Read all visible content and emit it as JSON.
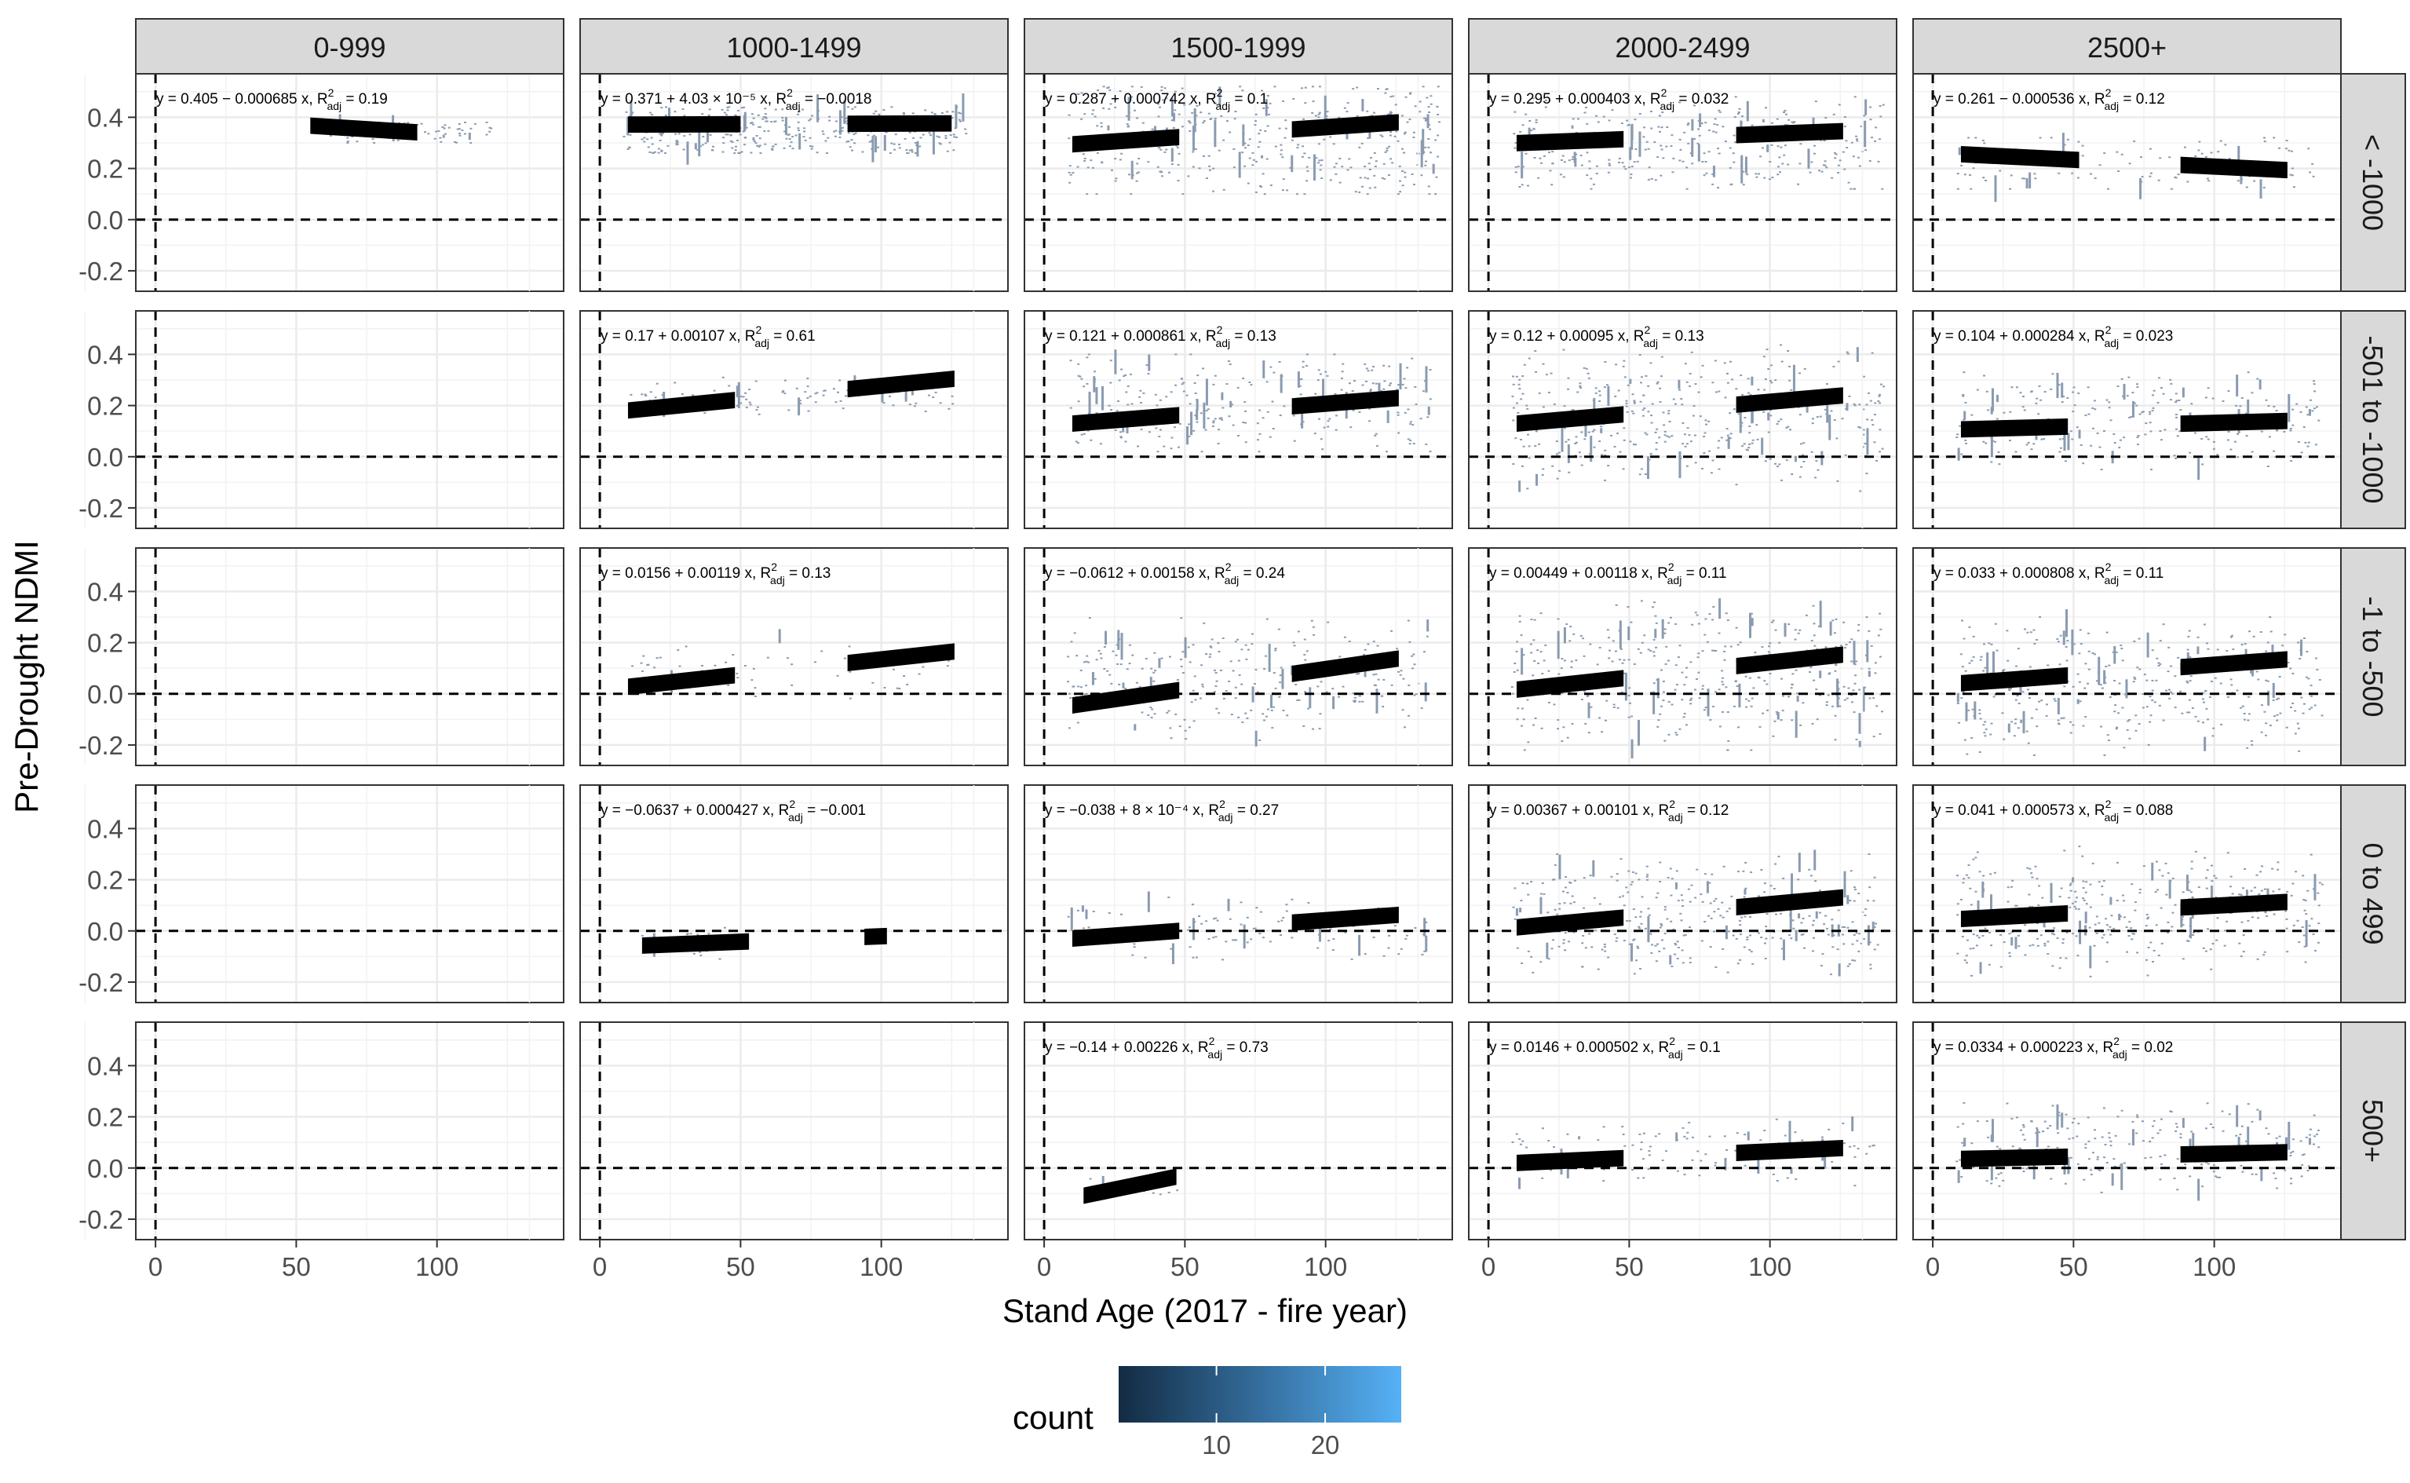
{
  "chart_data": {
    "type": "scatter",
    "facet_columns_label": "",
    "facet_rows_label": "",
    "x_axis": {
      "label": "Stand Age (2017 - fire year)",
      "lim": [
        -7,
        145
      ],
      "ticks": [
        0,
        50,
        100
      ],
      "tick_labels": [
        "0",
        "50",
        "100"
      ]
    },
    "y_axis": {
      "label": "Pre-Drought NDMI",
      "lim": [
        -0.28,
        0.57
      ],
      "ticks": [
        -0.2,
        0.0,
        0.2,
        0.4
      ],
      "tick_labels": [
        "-0.2",
        "0.0",
        "0.2",
        "0.4"
      ]
    },
    "reference_lines": {
      "x": 0,
      "y": 0,
      "style": "dashed"
    },
    "columns": [
      "0-999",
      "1000-1499",
      "1500-1999",
      "2000-2499",
      "2500+"
    ],
    "rows": [
      "< -1000",
      "-501 to -1000",
      "-1 to -500",
      "0 to 499",
      "500+"
    ],
    "legend": {
      "title": "count",
      "position": "bottom",
      "tick_values": [
        10,
        20
      ],
      "tick_labels": [
        "10",
        "20"
      ],
      "range": [
        1,
        27
      ],
      "color_low": "#132b43",
      "color_high": "#56b1f7"
    },
    "panels": [
      {
        "row": 0,
        "col": 0,
        "has_data": true,
        "equation": "y = 0.405 − 0.000685 x,  R²adj = 0.19",
        "eq_parts": {
          "pre": "y = 0.405 − 0.000685 x,  R",
          "sup": "2",
          "sub": "adj",
          "post": " = 0.19"
        },
        "segments": [
          [
            55,
            93,
            0.405,
            -0.000685
          ]
        ],
        "scatter": {
          "x": [
            60,
            120
          ],
          "y": [
            0.3,
            0.38
          ],
          "density": 0.2,
          "spread": 0.02
        }
      },
      {
        "row": 0,
        "col": 1,
        "has_data": true,
        "equation": "y = 0.371 + 4.03 × 10⁻⁵ x,  R²adj = −0.0018",
        "eq_parts": {
          "pre": "y = 0.371 + 4.03 × 10⁻⁵ x,  R",
          "sup": "2",
          "sub": "adj",
          "post": " = −0.0018"
        },
        "segments": [
          [
            10,
            50,
            0.371,
            4.03e-05
          ],
          [
            88,
            125,
            0.371,
            4.03e-05
          ]
        ],
        "scatter": {
          "x": [
            8,
            130
          ],
          "y": [
            0.26,
            0.44
          ],
          "density": 0.9,
          "spread": 0.04
        }
      },
      {
        "row": 0,
        "col": 2,
        "has_data": true,
        "equation": "y = 0.287 + 0.000742 x,  R²adj = 0.1",
        "eq_parts": {
          "pre": "y = 0.287 + 0.000742 x,  R",
          "sup": "2",
          "sub": "adj",
          "post": " = 0.1"
        },
        "segments": [
          [
            10,
            48,
            0.287,
            0.000742
          ],
          [
            88,
            126,
            0.287,
            0.000742
          ]
        ],
        "scatter": {
          "x": [
            8,
            140
          ],
          "y": [
            0.1,
            0.52
          ],
          "density": 1.0,
          "spread": 0.09
        }
      },
      {
        "row": 0,
        "col": 3,
        "has_data": true,
        "equation": "y = 0.295 + 0.000403 x,  R²adj = 0.032",
        "eq_parts": {
          "pre": "y = 0.295 + 0.000403 x,  R",
          "sup": "2",
          "sub": "adj",
          "post": " = 0.032"
        },
        "segments": [
          [
            10,
            48,
            0.295,
            0.000403
          ],
          [
            88,
            126,
            0.295,
            0.000403
          ]
        ],
        "scatter": {
          "x": [
            8,
            140
          ],
          "y": [
            0.12,
            0.48
          ],
          "density": 0.8,
          "spread": 0.07
        }
      },
      {
        "row": 0,
        "col": 4,
        "has_data": true,
        "equation": "y = 0.261 − 0.000536 x,  R²adj = 0.12",
        "eq_parts": {
          "pre": "y = 0.261 − 0.000536 x,  R",
          "sup": "2",
          "sub": "adj",
          "post": " = 0.12"
        },
        "segments": [
          [
            10,
            52,
            0.261,
            -0.000536
          ],
          [
            88,
            126,
            0.261,
            -0.000536
          ]
        ],
        "scatter": {
          "x": [
            8,
            135
          ],
          "y": [
            0.12,
            0.32
          ],
          "density": 0.3,
          "spread": 0.05
        }
      },
      {
        "row": 1,
        "col": 0,
        "has_data": false
      },
      {
        "row": 1,
        "col": 1,
        "has_data": true,
        "equation": "y = 0.17 + 0.00107 x,  R²adj = 0.61",
        "eq_parts": {
          "pre": "y = 0.17 + 0.00107 x,  R",
          "sup": "2",
          "sub": "adj",
          "post": " = 0.61"
        },
        "segments": [
          [
            10,
            48,
            0.17,
            0.00107
          ],
          [
            88,
            126,
            0.17,
            0.00107
          ]
        ],
        "scatter": {
          "x": [
            10,
            126
          ],
          "y": [
            0.14,
            0.33
          ],
          "density": 0.25,
          "spread": 0.02
        }
      },
      {
        "row": 1,
        "col": 2,
        "has_data": true,
        "equation": "y = 0.121 + 0.000861 x,  R²adj = 0.13",
        "eq_parts": {
          "pre": "y = 0.121 + 0.000861 x,  R",
          "sup": "2",
          "sub": "adj",
          "post": " = 0.13"
        },
        "segments": [
          [
            10,
            48,
            0.121,
            0.000861
          ],
          [
            88,
            126,
            0.121,
            0.000861
          ]
        ],
        "scatter": {
          "x": [
            8,
            138
          ],
          "y": [
            0.02,
            0.4
          ],
          "density": 0.7,
          "spread": 0.07
        }
      },
      {
        "row": 1,
        "col": 3,
        "has_data": true,
        "equation": "y = 0.12 + 0.00095 x,  R²adj = 0.13",
        "eq_parts": {
          "pre": "y = 0.12 + 0.00095 x,  R",
          "sup": "2",
          "sub": "adj",
          "post": " = 0.13"
        },
        "segments": [
          [
            10,
            48,
            0.12,
            0.00095
          ],
          [
            88,
            126,
            0.12,
            0.00095
          ]
        ],
        "scatter": {
          "x": [
            8,
            140
          ],
          "y": [
            -0.15,
            0.45
          ],
          "density": 1.0,
          "spread": 0.09
        }
      },
      {
        "row": 1,
        "col": 4,
        "has_data": true,
        "equation": "y = 0.104 + 0.000284 x,  R²adj = 0.023",
        "eq_parts": {
          "pre": "y = 0.104 + 0.000284 x,  R",
          "sup": "2",
          "sub": "adj",
          "post": " = 0.023"
        },
        "segments": [
          [
            10,
            48,
            0.104,
            0.000284
          ],
          [
            88,
            126,
            0.104,
            0.000284
          ]
        ],
        "scatter": {
          "x": [
            8,
            138
          ],
          "y": [
            -0.05,
            0.33
          ],
          "density": 0.6,
          "spread": 0.07
        }
      },
      {
        "row": 2,
        "col": 0,
        "has_data": false
      },
      {
        "row": 2,
        "col": 1,
        "has_data": true,
        "equation": "y = 0.0156 + 0.00119 x,  R²adj = 0.13",
        "eq_parts": {
          "pre": "y = 0.0156 + 0.00119 x,  R",
          "sup": "2",
          "sub": "adj",
          "post": " = 0.13"
        },
        "segments": [
          [
            10,
            48,
            0.0156,
            0.00119
          ],
          [
            88,
            126,
            0.0156,
            0.00119
          ]
        ],
        "scatter": {
          "x": [
            10,
            126
          ],
          "y": [
            -0.12,
            0.32
          ],
          "density": 0.15,
          "spread": 0.03
        }
      },
      {
        "row": 2,
        "col": 2,
        "has_data": true,
        "equation": "y = −0.0612 + 0.00158 x,  R²adj = 0.24",
        "eq_parts": {
          "pre": "y = −0.0612 + 0.00158 x,  R",
          "sup": "2",
          "sub": "adj",
          "post": " = 0.24"
        },
        "segments": [
          [
            10,
            48,
            -0.0612,
            0.00158
          ],
          [
            88,
            126,
            -0.0612,
            0.00158
          ]
        ],
        "scatter": {
          "x": [
            8,
            136
          ],
          "y": [
            -0.2,
            0.32
          ],
          "density": 0.7,
          "spread": 0.08
        }
      },
      {
        "row": 2,
        "col": 3,
        "has_data": true,
        "equation": "y = 0.00449 + 0.00118 x,  R²adj = 0.11",
        "eq_parts": {
          "pre": "y = 0.00449 + 0.00118 x,  R",
          "sup": "2",
          "sub": "adj",
          "post": " = 0.11"
        },
        "segments": [
          [
            10,
            48,
            0.00449,
            0.00118
          ],
          [
            88,
            126,
            0.00449,
            0.00118
          ]
        ],
        "scatter": {
          "x": [
            8,
            140
          ],
          "y": [
            -0.22,
            0.38
          ],
          "density": 1.0,
          "spread": 0.1
        }
      },
      {
        "row": 2,
        "col": 4,
        "has_data": true,
        "equation": "y = 0.033 + 0.000808 x,  R²adj = 0.11",
        "eq_parts": {
          "pre": "y = 0.033 + 0.000808 x,  R",
          "sup": "2",
          "sub": "adj",
          "post": " = 0.11"
        },
        "segments": [
          [
            10,
            48,
            0.033,
            0.000808
          ],
          [
            88,
            126,
            0.033,
            0.000808
          ]
        ],
        "scatter": {
          "x": [
            8,
            138
          ],
          "y": [
            -0.24,
            0.3
          ],
          "density": 0.9,
          "spread": 0.09
        }
      },
      {
        "row": 3,
        "col": 0,
        "has_data": false
      },
      {
        "row": 3,
        "col": 1,
        "has_data": true,
        "equation": "y = −0.0637 + 0.000427 x,  R²adj = −0.001",
        "eq_parts": {
          "pre": "y = −0.0637 + 0.000427 x,  R",
          "sup": "2",
          "sub": "adj",
          "post": " = −0.001"
        },
        "segments": [
          [
            15,
            53,
            -0.0637,
            0.000427
          ],
          [
            94,
            102,
            -0.0637,
            0.000427
          ]
        ],
        "scatter": {
          "x": [
            14,
            55
          ],
          "y": [
            -0.12,
            0.02
          ],
          "density": 0.1,
          "spread": 0.02
        }
      },
      {
        "row": 3,
        "col": 2,
        "has_data": true,
        "equation": "y = −0.038 + 8 × 10⁻⁴ x,  R²adj = 0.27",
        "eq_parts": {
          "pre": "y = −0.038 + 8 × 10⁻⁴ x,  R",
          "sup": "2",
          "sub": "adj",
          "post": " = 0.27"
        },
        "segments": [
          [
            10,
            48,
            -0.038,
            0.0008
          ],
          [
            88,
            126,
            -0.038,
            0.0008
          ]
        ],
        "scatter": {
          "x": [
            8,
            136
          ],
          "y": [
            -0.14,
            0.15
          ],
          "density": 0.3,
          "spread": 0.04
        }
      },
      {
        "row": 3,
        "col": 3,
        "has_data": true,
        "equation": "y = 0.00367 + 0.00101 x,  R²adj = 0.12",
        "eq_parts": {
          "pre": "y = 0.00367 + 0.00101 x,  R",
          "sup": "2",
          "sub": "adj",
          "post": " = 0.12"
        },
        "segments": [
          [
            10,
            48,
            0.00367,
            0.00101
          ],
          [
            88,
            126,
            0.00367,
            0.00101
          ]
        ],
        "scatter": {
          "x": [
            8,
            138
          ],
          "y": [
            -0.18,
            0.3
          ],
          "density": 0.9,
          "spread": 0.08
        }
      },
      {
        "row": 3,
        "col": 4,
        "has_data": true,
        "equation": "y = 0.041 + 0.000573 x,  R²adj = 0.088",
        "eq_parts": {
          "pre": "y = 0.041 + 0.000573 x,  R",
          "sup": "2",
          "sub": "adj",
          "post": " = 0.088"
        },
        "segments": [
          [
            10,
            48,
            0.041,
            0.000573
          ],
          [
            88,
            126,
            0.041,
            0.000573
          ]
        ],
        "scatter": {
          "x": [
            8,
            138
          ],
          "y": [
            -0.2,
            0.34
          ],
          "density": 0.9,
          "spread": 0.08
        }
      },
      {
        "row": 4,
        "col": 0,
        "has_data": false
      },
      {
        "row": 4,
        "col": 1,
        "has_data": false
      },
      {
        "row": 4,
        "col": 2,
        "has_data": true,
        "equation": "y = −0.14 + 0.00226 x,  R²adj = 0.73",
        "eq_parts": {
          "pre": "y = −0.14 + 0.00226 x,  R",
          "sup": "2",
          "sub": "adj",
          "post": " = 0.73"
        },
        "segments": [
          [
            14,
            47,
            -0.14,
            0.00226
          ]
        ],
        "scatter": {
          "x": [
            14,
            47
          ],
          "y": [
            -0.12,
            -0.03
          ],
          "density": 0.05,
          "spread": 0.01
        }
      },
      {
        "row": 4,
        "col": 3,
        "has_data": true,
        "equation": "y = 0.0146 + 0.000502 x,  R²adj = 0.1",
        "eq_parts": {
          "pre": "y = 0.0146 + 0.000502 x,  R",
          "sup": "2",
          "sub": "adj",
          "post": " = 0.1"
        },
        "segments": [
          [
            10,
            48,
            0.0146,
            0.000502
          ],
          [
            88,
            126,
            0.0146,
            0.000502
          ]
        ],
        "scatter": {
          "x": [
            8,
            138
          ],
          "y": [
            -0.08,
            0.2
          ],
          "density": 0.3,
          "spread": 0.04
        }
      },
      {
        "row": 4,
        "col": 4,
        "has_data": true,
        "equation": "y = 0.0334 + 0.000223 x,  R²adj = 0.02",
        "eq_parts": {
          "pre": "y = 0.0334 + 0.000223 x,  R",
          "sup": "2",
          "sub": "adj",
          "post": " = 0.02"
        },
        "segments": [
          [
            10,
            48,
            0.0334,
            0.000223
          ],
          [
            88,
            126,
            0.0334,
            0.000223
          ]
        ],
        "scatter": {
          "x": [
            8,
            138
          ],
          "y": [
            -0.1,
            0.26
          ],
          "density": 0.6,
          "spread": 0.06
        }
      }
    ]
  }
}
